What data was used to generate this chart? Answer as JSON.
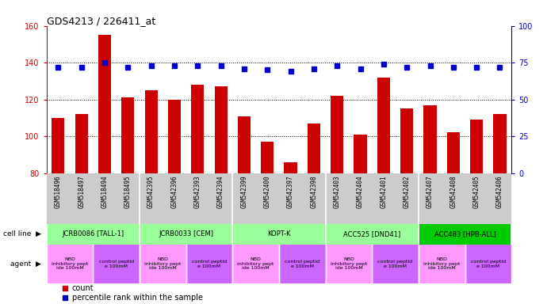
{
  "title": "GDS4213 / 226411_at",
  "samples": [
    "GSM518496",
    "GSM518497",
    "GSM518494",
    "GSM518495",
    "GSM542395",
    "GSM542396",
    "GSM542393",
    "GSM542394",
    "GSM542399",
    "GSM542400",
    "GSM542397",
    "GSM542398",
    "GSM542403",
    "GSM542404",
    "GSM542401",
    "GSM542402",
    "GSM542407",
    "GSM542408",
    "GSM542405",
    "GSM542406"
  ],
  "counts": [
    110,
    112,
    155,
    121,
    125,
    120,
    128,
    127,
    111,
    97,
    86,
    107,
    122,
    101,
    132,
    115,
    117,
    102,
    109,
    112
  ],
  "percentiles": [
    72,
    72,
    75,
    72,
    73,
    73,
    73,
    73,
    71,
    70,
    69,
    71,
    73,
    71,
    74,
    72,
    73,
    72,
    72,
    72
  ],
  "bar_color": "#cc0000",
  "dot_color": "#0000cc",
  "ylim_left": [
    80,
    160
  ],
  "ylim_right": [
    0,
    100
  ],
  "yticks_left": [
    80,
    100,
    120,
    140,
    160
  ],
  "yticks_right": [
    0,
    25,
    50,
    75,
    100
  ],
  "gridlines_at": [
    100,
    120,
    140
  ],
  "cell_lines": [
    {
      "label": "JCRB0086 [TALL-1]",
      "span": [
        0,
        4
      ],
      "color": "#99ff99"
    },
    {
      "label": "JCRB0033 [CEM]",
      "span": [
        4,
        8
      ],
      "color": "#99ff99"
    },
    {
      "label": "KOPT-K",
      "span": [
        8,
        12
      ],
      "color": "#99ff99"
    },
    {
      "label": "ACC525 [DND41]",
      "span": [
        12,
        16
      ],
      "color": "#99ff99"
    },
    {
      "label": "ACC483 [HPB-ALL]",
      "span": [
        16,
        20
      ],
      "color": "#00cc00"
    }
  ],
  "agents": [
    {
      "label": "NBD\ninhibitory pept\nide 100mM",
      "span": [
        0,
        2
      ],
      "color": "#ff99ff"
    },
    {
      "label": "control peptid\ne 100mM",
      "span": [
        2,
        4
      ],
      "color": "#cc66ff"
    },
    {
      "label": "NBD\ninhibitory pept\nide 100mM",
      "span": [
        4,
        6
      ],
      "color": "#ff99ff"
    },
    {
      "label": "control peptid\ne 100mM",
      "span": [
        6,
        8
      ],
      "color": "#cc66ff"
    },
    {
      "label": "NBD\ninhibitory pept\nide 100mM",
      "span": [
        8,
        10
      ],
      "color": "#ff99ff"
    },
    {
      "label": "control peptid\ne 100mM",
      "span": [
        10,
        12
      ],
      "color": "#cc66ff"
    },
    {
      "label": "NBD\ninhibitory pept\nide 100mM",
      "span": [
        12,
        14
      ],
      "color": "#ff99ff"
    },
    {
      "label": "control peptid\ne 100mM",
      "span": [
        14,
        16
      ],
      "color": "#cc66ff"
    },
    {
      "label": "NBD\ninhibitory pept\nide 100mM",
      "span": [
        16,
        18
      ],
      "color": "#ff99ff"
    },
    {
      "label": "control peptid\ne 100mM",
      "span": [
        18,
        20
      ],
      "color": "#cc66ff"
    }
  ],
  "bg_color": "#ffffff",
  "tick_bg_color": "#cccccc",
  "cell_line_label": "cell line",
  "agent_label": "agent"
}
